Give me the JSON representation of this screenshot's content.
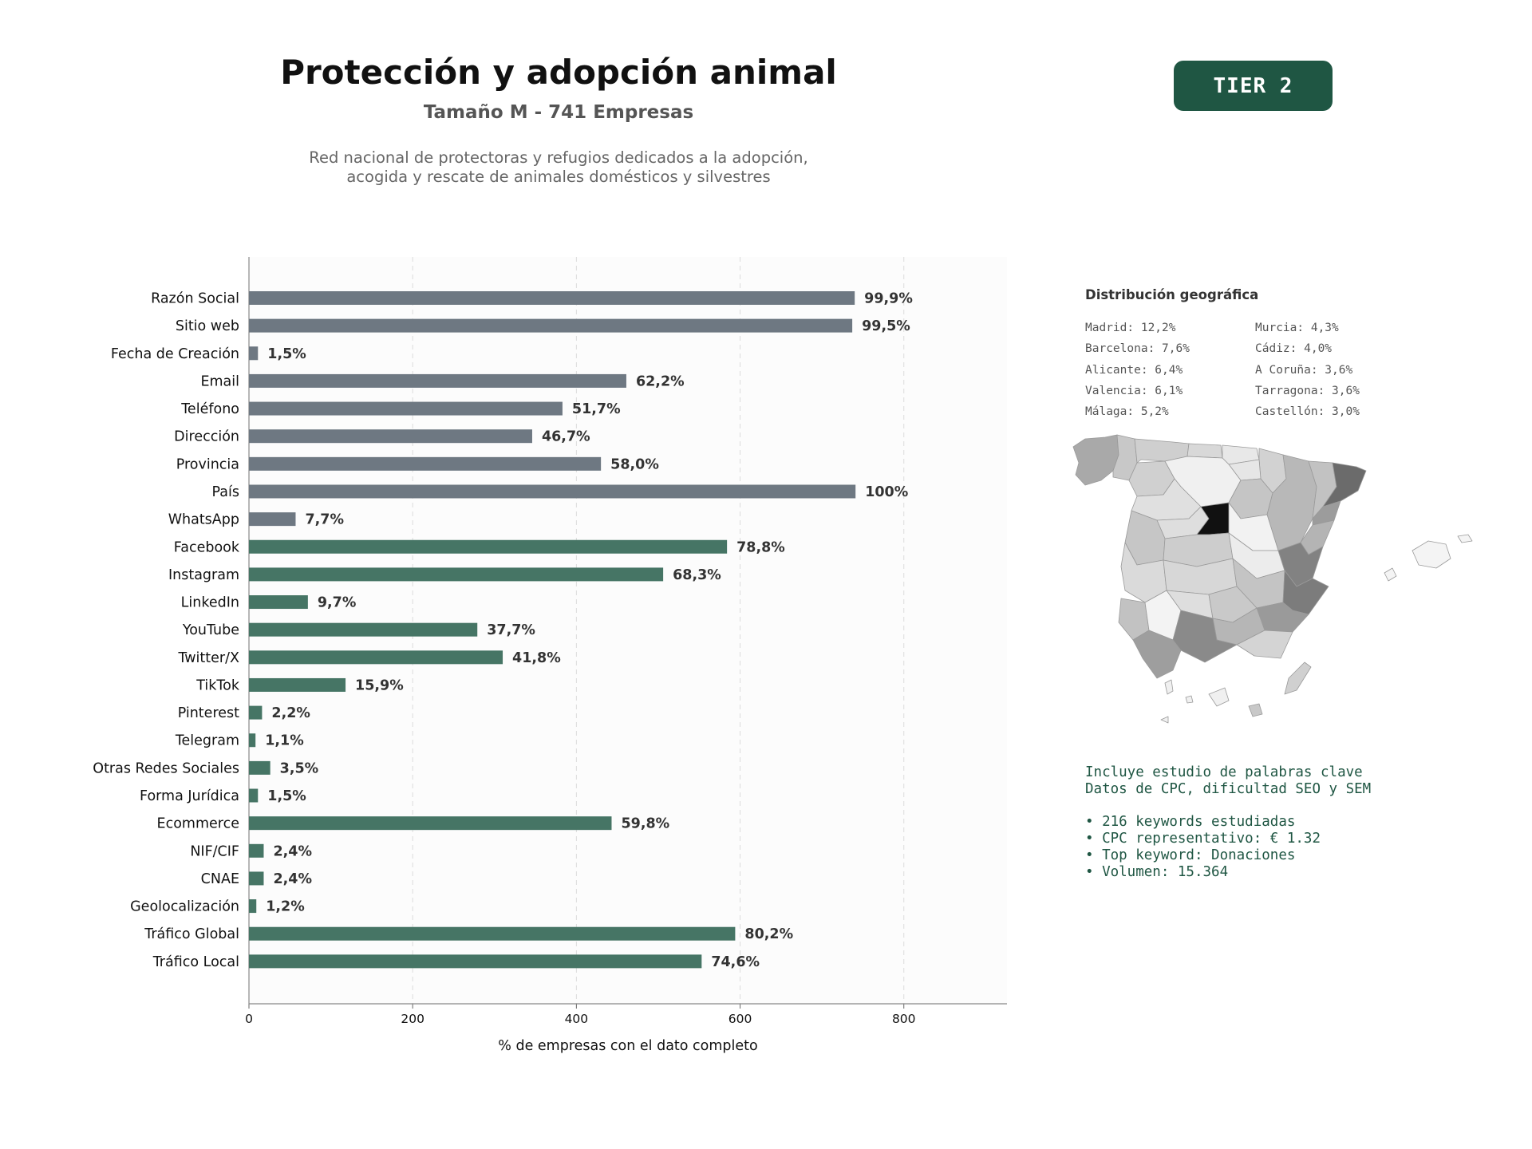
{
  "header": {
    "title": "Protección y adopción animal",
    "subtitle": "Tamaño M - 741 Empresas",
    "description_line1": "Red nacional de protectoras y refugios dedicados a la adopción,",
    "description_line2": "acogida y rescate de animales domésticos y silvestres",
    "tier_badge": "TIER 2"
  },
  "colors": {
    "base_bar": "#6e7882",
    "social_bar": "#467565",
    "tier_bg": "#1f5643",
    "keyword_text": "#1f5643"
  },
  "chart_data": {
    "type": "bar",
    "orientation": "horizontal",
    "categories": [
      "Razón Social",
      "Sitio web",
      "Fecha de Creación",
      "Email",
      "Teléfono",
      "Dirección",
      "Provincia",
      "País",
      "WhatsApp",
      "Facebook",
      "Instagram",
      "LinkedIn",
      "YouTube",
      "Twitter/X",
      "TikTok",
      "Pinterest",
      "Telegram",
      "Otras Redes Sociales",
      "Forma Jurídica",
      "Ecommerce",
      "NIF/CIF",
      "CNAE",
      "Geolocalización",
      "Tráfico Global",
      "Tráfico Local"
    ],
    "values": [
      740,
      737,
      11,
      461,
      383,
      346,
      430,
      741,
      57,
      584,
      506,
      72,
      279,
      310,
      118,
      16,
      8,
      26,
      11,
      443,
      18,
      18,
      9,
      594,
      553
    ],
    "labels": [
      "99,9%",
      "99,5%",
      "1,5%",
      "62,2%",
      "51,7%",
      "46,7%",
      "58,0%",
      "100%",
      "7,7%",
      "78,8%",
      "68,3%",
      "9,7%",
      "37,7%",
      "41,8%",
      "15,9%",
      "2,2%",
      "1,1%",
      "3,5%",
      "1,5%",
      "59,8%",
      "2,4%",
      "2,4%",
      "1,2%",
      "80,2%",
      "74,6%"
    ],
    "bar_group": [
      "base",
      "base",
      "base",
      "base",
      "base",
      "base",
      "base",
      "base",
      "base",
      "social",
      "social",
      "social",
      "social",
      "social",
      "social",
      "social",
      "social",
      "social",
      "social",
      "social",
      "social",
      "social",
      "social",
      "social",
      "social"
    ],
    "xlabel": "% de empresas con el dato completo",
    "ylabel": "",
    "xlim": [
      0,
      926
    ],
    "xticks": [
      0,
      200,
      400,
      600,
      800
    ],
    "grid": "vertical dashed",
    "legend": "none"
  },
  "geo": {
    "title": "Distribución geográfica",
    "col1": [
      "Madrid: 12,2%",
      "Barcelona: 7,6%",
      "Alicante: 6,4%",
      "Valencia: 6,1%",
      "Málaga: 5,2%"
    ],
    "col2": [
      "Murcia: 4,3%",
      "Cádiz: 4,0%",
      "A Coruña: 3,6%",
      "Tarragona: 3,6%",
      "Castellón: 3,0%"
    ]
  },
  "keywords": {
    "line1": "Incluye estudio de palabras clave",
    "line2": "Datos de CPC, dificultad SEO y SEM",
    "bullets": [
      "• 216 keywords estudiadas",
      "• CPC representativo: € 1.32",
      "• Top keyword: Donaciones",
      "• Volumen: 15.364"
    ]
  }
}
